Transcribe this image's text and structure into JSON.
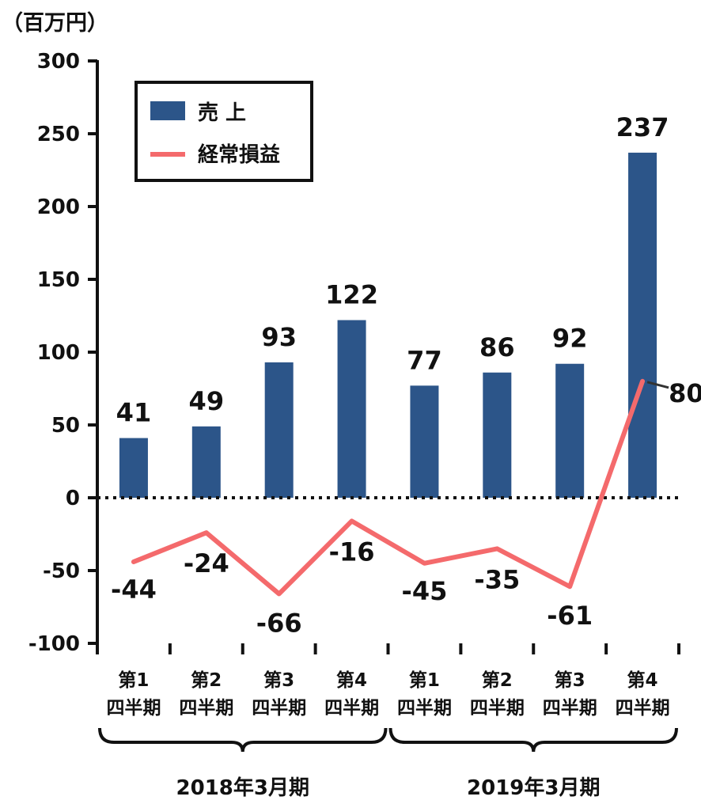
{
  "chart_data": {
    "type": "bar",
    "unit_label": "（百万円）",
    "categories": [
      [
        "第1",
        "四半期"
      ],
      [
        "第2",
        "四半期"
      ],
      [
        "第3",
        "四半期"
      ],
      [
        "第4",
        "四半期"
      ],
      [
        "第1",
        "四半期"
      ],
      [
        "第2",
        "四半期"
      ],
      [
        "第3",
        "四半期"
      ],
      [
        "第4",
        "四半期"
      ]
    ],
    "groups": [
      {
        "label": "2018年3月期",
        "indices": [
          0,
          1,
          2,
          3
        ]
      },
      {
        "label": "2019年3月期",
        "indices": [
          4,
          5,
          6,
          7
        ]
      }
    ],
    "ylim": [
      -100,
      300
    ],
    "yticks": [
      300,
      250,
      200,
      150,
      100,
      50,
      0,
      -50,
      -100
    ],
    "series": [
      {
        "name": "売 上",
        "type": "bar",
        "color": "#2c5589",
        "values": [
          41,
          49,
          93,
          122,
          77,
          86,
          92,
          237
        ]
      },
      {
        "name": "経常損益",
        "type": "line",
        "color": "#f46a6c",
        "values": [
          -44,
          -24,
          -66,
          -16,
          -45,
          -35,
          -61,
          80
        ]
      }
    ],
    "legend_position": "top-left",
    "zero_line": "dotted",
    "grid": false
  }
}
